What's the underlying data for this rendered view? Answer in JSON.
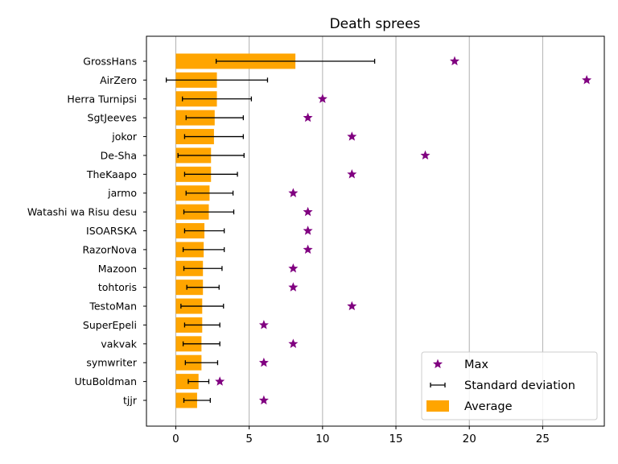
{
  "chart_data": {
    "type": "bar",
    "orientation": "horizontal",
    "title": "Death sprees",
    "xlabel": "",
    "ylabel": "",
    "xlim": [
      -2,
      29.2
    ],
    "xticks": [
      0,
      5,
      10,
      15,
      20,
      25
    ],
    "grid": "x",
    "legend_placement": "bottom-right",
    "categories": [
      "GrossHans",
      "AirZero",
      "Herra Turnipsi",
      "SgtJeeves",
      "jokor",
      "De-Sha",
      "TheKaapo",
      "jarmo",
      "Watashi wa Risu desu",
      "ISOARSKA",
      "RazorNova",
      "Mazoon",
      "tohtoris",
      "TestoMan",
      "SuperEpeli",
      "vakvak",
      "symwriter",
      "UtuBoldman",
      "tjjr"
    ],
    "series": [
      {
        "name": "Max",
        "kind": "scatter",
        "marker": "star",
        "color": "#800080",
        "values": [
          19,
          28,
          10,
          9,
          12,
          17,
          12,
          8,
          9,
          9,
          9,
          8,
          8,
          12,
          6,
          8,
          6,
          3,
          6
        ]
      },
      {
        "name": "Standard deviation",
        "kind": "errorbar",
        "color": "#000000",
        "values": [
          5.4,
          3.45,
          2.35,
          1.95,
          2.0,
          2.25,
          1.8,
          1.6,
          1.7,
          1.35,
          1.4,
          1.3,
          1.1,
          1.45,
          1.2,
          1.25,
          1.1,
          0.7,
          0.9
        ]
      },
      {
        "name": "Average",
        "kind": "bar",
        "color": "#ffa500",
        "values": [
          8.15,
          2.8,
          2.8,
          2.65,
          2.6,
          2.4,
          2.4,
          2.3,
          2.25,
          1.95,
          1.9,
          1.85,
          1.85,
          1.8,
          1.8,
          1.75,
          1.75,
          1.55,
          1.45
        ]
      }
    ]
  }
}
